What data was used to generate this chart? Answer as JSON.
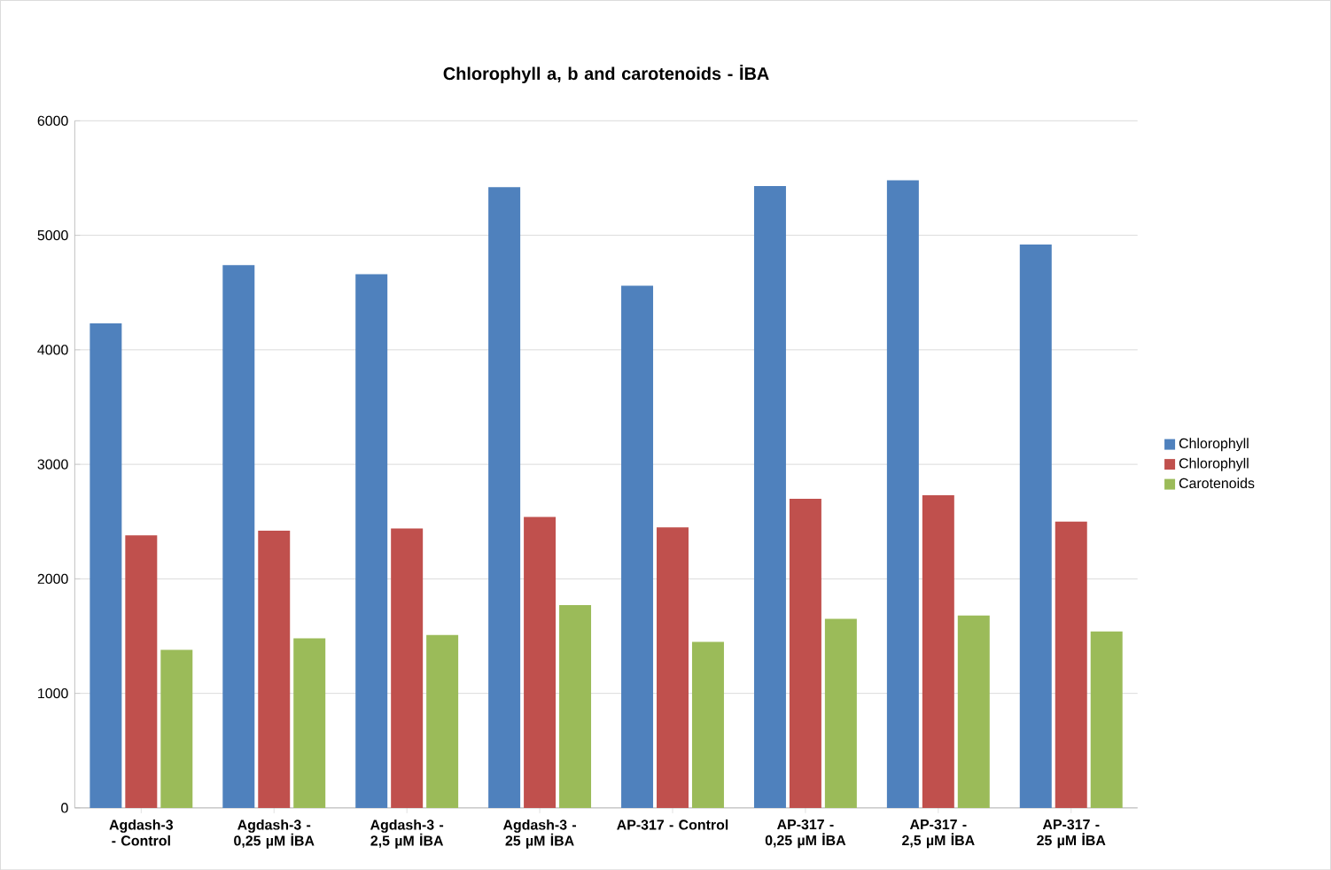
{
  "chart_data": {
    "type": "bar",
    "title": "Chlorophyll a, b and carotenoids - İBA",
    "categories": [
      "Agdash-3 - Control",
      "Agdash-3 - 0,25 µM İBA",
      "Agdash-3 - 2,5 µM İBA",
      "Agdash-3 - 25 µM  İBA",
      "AP-317 - Control",
      "AP-317 - 0,25 µM İBA",
      "AP-317 - 2,5 µM İBA",
      "AP-317 - 25 µM İBA"
    ],
    "series": [
      {
        "name": "Chlorophyll",
        "color": "#4f81bd",
        "values": [
          4230,
          4740,
          4660,
          5420,
          4560,
          5430,
          5480,
          4920
        ]
      },
      {
        "name": "Chlorophyll",
        "color": "#c0504d",
        "values": [
          2380,
          2420,
          2440,
          2540,
          2450,
          2700,
          2730,
          2500
        ]
      },
      {
        "name": "Carotenoids",
        "color": "#9bbb59",
        "values": [
          1380,
          1480,
          1510,
          1770,
          1450,
          1650,
          1680,
          1540
        ]
      }
    ],
    "ylim": [
      0,
      6000
    ],
    "yticks": [
      0,
      1000,
      2000,
      3000,
      4000,
      5000,
      6000
    ],
    "grid": "y",
    "legend": "right"
  }
}
